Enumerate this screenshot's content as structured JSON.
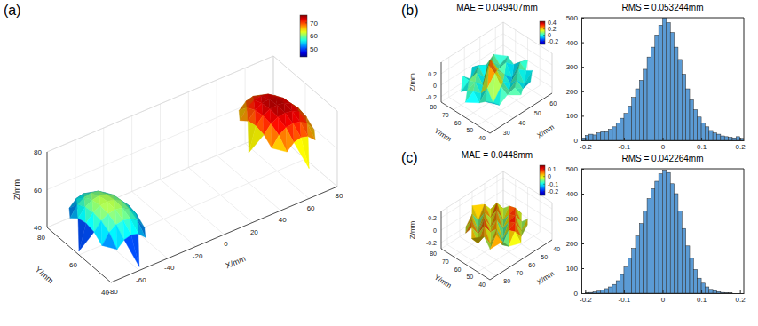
{
  "chart_data": [
    {
      "type": "surface3d",
      "panel": "(a)",
      "x_label": "X/mm",
      "y_label": "Y/mm",
      "z_label": "Z/mm",
      "xlim": [
        -80,
        80
      ],
      "xticks": [
        -80,
        -60,
        -40,
        -20,
        0,
        20,
        40,
        60,
        80
      ],
      "ylim": [
        40,
        80
      ],
      "yticks": [
        40,
        60,
        80
      ],
      "zlim": [
        40,
        80
      ],
      "zticks": [
        40,
        60,
        80
      ],
      "grid": true,
      "color_lim": [
        44,
        76
      ],
      "color_ticks": [
        50,
        60,
        70
      ],
      "series": [
        {
          "x": [
            -80,
            -75,
            -70,
            -65,
            -60,
            -55,
            -50,
            -45,
            -40
          ],
          "y": [
            40,
            45,
            50,
            55,
            60,
            65,
            70,
            75,
            80
          ],
          "z": [
            [
              null,
              null,
              null,
              null,
              42,
              null,
              null,
              null,
              null
            ],
            [
              null,
              null,
              50.7,
              54.2,
              55.2,
              54.2,
              50.7,
              null,
              null
            ],
            [
              null,
              50.7,
              56.1,
              58.6,
              59.3,
              58.6,
              56.1,
              50.7,
              null
            ],
            [
              null,
              54.2,
              58.6,
              60.7,
              61.4,
              60.7,
              58.6,
              54.2,
              null
            ],
            [
              42,
              55.2,
              59.3,
              61.4,
              62,
              61.4,
              59.3,
              55.2,
              42
            ],
            [
              null,
              54.2,
              58.6,
              60.7,
              61.4,
              60.7,
              58.6,
              54.2,
              null
            ],
            [
              null,
              50.7,
              56.1,
              58.6,
              59.3,
              58.6,
              56.1,
              50.7,
              null
            ],
            [
              null,
              null,
              50.7,
              54.2,
              55.2,
              54.2,
              50.7,
              null,
              null
            ],
            [
              null,
              null,
              null,
              null,
              42,
              null,
              null,
              null,
              null
            ]
          ]
        },
        {
          "x": [
            40,
            45,
            50,
            55,
            60,
            65,
            70,
            75,
            80
          ],
          "y": [
            40,
            45,
            50,
            55,
            60,
            65,
            70,
            75,
            80
          ],
          "z": [
            [
              null,
              null,
              null,
              null,
              56,
              null,
              null,
              null,
              null
            ],
            [
              null,
              null,
              64.2,
              67.6,
              68.6,
              67.6,
              64.2,
              null,
              null
            ],
            [
              null,
              64.2,
              69.4,
              71.8,
              72.5,
              71.8,
              69.4,
              64.2,
              null
            ],
            [
              null,
              67.6,
              71.8,
              73.8,
              74.4,
              73.8,
              71.8,
              67.6,
              null
            ],
            [
              56,
              68.6,
              72.5,
              74.4,
              75,
              74.4,
              72.5,
              68.6,
              56
            ],
            [
              null,
              67.6,
              71.8,
              73.8,
              74.4,
              73.8,
              71.8,
              67.6,
              null
            ],
            [
              null,
              64.2,
              69.4,
              71.8,
              72.5,
              71.8,
              69.4,
              64.2,
              null
            ],
            [
              null,
              null,
              64.2,
              67.6,
              68.6,
              67.6,
              64.2,
              null,
              null
            ],
            [
              null,
              null,
              null,
              null,
              56,
              null,
              null,
              null,
              null
            ]
          ]
        }
      ]
    },
    {
      "type": "surface3d",
      "panel": "(b)",
      "title": "MAE = 0.049407mm",
      "x_label": "X/mm",
      "y_label": "Y/mm",
      "z_label": "Z/mm",
      "xlim": [
        25,
        65
      ],
      "xticks": [
        30,
        40,
        50,
        60
      ],
      "ylim": [
        40,
        80
      ],
      "yticks": [
        40,
        50,
        60,
        70,
        80
      ],
      "zlim": [
        -0.3,
        0.4
      ],
      "zticks": [
        -0.2,
        0,
        0.2
      ],
      "grid": true,
      "color_lim": [
        -0.3,
        0.45
      ],
      "color_ticks": [
        -0.2,
        0,
        0.2,
        0.4
      ],
      "series": [
        {
          "x": [
            25,
            30,
            35,
            40,
            45,
            50,
            55,
            60,
            65
          ],
          "y": [
            40,
            45,
            50,
            55,
            60,
            65,
            70,
            75,
            80
          ],
          "z": [
            [
              null,
              null,
              null,
              null,
              0.02,
              null,
              null,
              null,
              null
            ],
            [
              null,
              null,
              -0.05,
              0.04,
              0.08,
              -0.03,
              0.01,
              null,
              null
            ],
            [
              null,
              0.03,
              -0.08,
              0.12,
              -0.04,
              0.06,
              -0.1,
              0.05,
              null
            ],
            [
              null,
              -0.06,
              0.1,
              0.28,
              0.05,
              -0.07,
              0.09,
              -0.02,
              null
            ],
            [
              -0.03,
              0.07,
              -0.05,
              0.35,
              0.18,
              0.02,
              -0.12,
              0.06,
              0.01
            ],
            [
              null,
              0.02,
              0.08,
              -0.06,
              0.3,
              0.04,
              0.07,
              -0.05,
              null
            ],
            [
              null,
              -0.07,
              0.04,
              0.09,
              -0.08,
              0.11,
              -0.04,
              0.03,
              null
            ],
            [
              null,
              null,
              0.05,
              -0.09,
              0.06,
              -0.02,
              0.08,
              null,
              null
            ],
            [
              null,
              null,
              null,
              null,
              -0.04,
              null,
              null,
              null,
              null
            ]
          ]
        }
      ]
    },
    {
      "type": "histogram",
      "title": "RMS = 0.053244mm",
      "bins": [
        -0.21,
        -0.2,
        -0.19,
        -0.18,
        -0.17,
        -0.16,
        -0.15,
        -0.14,
        -0.13,
        -0.12,
        -0.11,
        -0.1,
        -0.09,
        -0.08,
        -0.07,
        -0.06,
        -0.05,
        -0.04,
        -0.03,
        -0.02,
        -0.01,
        0,
        0.01,
        0.02,
        0.03,
        0.04,
        0.05,
        0.06,
        0.07,
        0.08,
        0.09,
        0.1,
        0.11,
        0.12,
        0.13,
        0.14,
        0.15,
        0.16,
        0.17,
        0.18,
        0.19,
        0.2,
        0.21
      ],
      "values": [
        10,
        20,
        25,
        22,
        30,
        35,
        35,
        45,
        55,
        70,
        90,
        110,
        140,
        175,
        210,
        245,
        290,
        340,
        380,
        430,
        470,
        500,
        480,
        440,
        380,
        330,
        270,
        210,
        165,
        125,
        95,
        70,
        55,
        40,
        30,
        25,
        18,
        15,
        12,
        10,
        15,
        8
      ],
      "color": "#5b9bd5",
      "xlim": [
        -0.21,
        0.21
      ],
      "xticks": [
        -0.2,
        -0.1,
        0,
        0.1,
        0.2
      ],
      "ylim": [
        0,
        500
      ],
      "yticks": [
        0,
        100,
        200,
        300,
        400,
        500
      ]
    },
    {
      "type": "surface3d",
      "panel": "(c)",
      "title": "MAE = 0.0448mm",
      "x_label": "X/mm",
      "y_label": "Y/mm",
      "z_label": "Z/mm",
      "xlim": [
        -85,
        -35
      ],
      "xticks": [
        -80,
        -70,
        -60,
        -50,
        -40
      ],
      "ylim": [
        40,
        80
      ],
      "yticks": [
        40,
        50,
        60,
        70,
        80
      ],
      "zlim": [
        -0.3,
        0.3
      ],
      "zticks": [
        -0.2,
        0,
        0.2
      ],
      "grid": true,
      "color_lim": [
        -0.25,
        0.15
      ],
      "color_ticks": [
        -0.2,
        -0.1,
        0,
        0.1
      ],
      "series": [
        {
          "x": [
            -80,
            -75,
            -70,
            -65,
            -60,
            -55,
            -50,
            -45,
            -40
          ],
          "y": [
            40,
            45,
            50,
            55,
            60,
            65,
            70,
            75,
            80
          ],
          "z": [
            [
              null,
              null,
              null,
              null,
              -0.03,
              null,
              null,
              null,
              null
            ],
            [
              null,
              null,
              0.06,
              -0.08,
              0.09,
              -0.05,
              0.07,
              null,
              null
            ],
            [
              null,
              -0.06,
              0.1,
              -0.12,
              0.05,
              0.11,
              -0.09,
              0.04,
              null
            ],
            [
              null,
              0.08,
              -0.1,
              0.07,
              -0.15,
              0.06,
              0.1,
              -0.07,
              null
            ],
            [
              0.05,
              -0.09,
              0.12,
              -0.04,
              0.09,
              -0.11,
              0.05,
              0.09,
              -0.06
            ],
            [
              null,
              0.1,
              -0.07,
              0.11,
              -0.08,
              0.12,
              -0.1,
              0.06,
              null
            ],
            [
              null,
              -0.05,
              0.09,
              -0.13,
              0.08,
              -0.06,
              0.11,
              -0.04,
              null
            ],
            [
              null,
              null,
              -0.08,
              0.06,
              -0.1,
              0.09,
              -0.05,
              null,
              null
            ],
            [
              null,
              null,
              null,
              null,
              0.07,
              null,
              null,
              null,
              null
            ]
          ]
        }
      ]
    },
    {
      "type": "histogram",
      "title": "RMS = 0.042264mm",
      "bins": [
        -0.21,
        -0.2,
        -0.19,
        -0.18,
        -0.17,
        -0.16,
        -0.15,
        -0.14,
        -0.13,
        -0.12,
        -0.11,
        -0.1,
        -0.09,
        -0.08,
        -0.07,
        -0.06,
        -0.05,
        -0.04,
        -0.03,
        -0.02,
        -0.01,
        0,
        0.01,
        0.02,
        0.03,
        0.04,
        0.05,
        0.06,
        0.07,
        0.08,
        0.09,
        0.1,
        0.11,
        0.12,
        0.13,
        0.14,
        0.15,
        0.16,
        0.17,
        0.18,
        0.19,
        0.2,
        0.21
      ],
      "values": [
        0,
        2,
        3,
        5,
        8,
        12,
        18,
        25,
        35,
        50,
        75,
        105,
        140,
        180,
        230,
        280,
        330,
        380,
        420,
        450,
        480,
        495,
        485,
        440,
        400,
        330,
        260,
        190,
        140,
        95,
        60,
        40,
        25,
        15,
        10,
        6,
        3,
        2,
        1,
        0,
        0,
        0
      ],
      "color": "#5b9bd5",
      "xlim": [
        -0.21,
        0.21
      ],
      "xticks": [
        -0.2,
        -0.1,
        0,
        0.1,
        0.2
      ],
      "ylim": [
        0,
        500
      ],
      "yticks": [
        0,
        100,
        200,
        300,
        400,
        500
      ]
    }
  ]
}
